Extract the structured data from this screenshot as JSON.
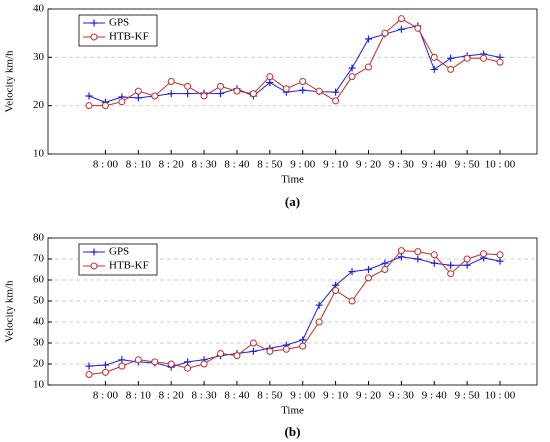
{
  "chart_data": [
    {
      "type": "line",
      "caption": "(a)",
      "xlabel": "Time",
      "ylabel": "Velocity km/h",
      "categories": [
        null,
        "8 : 00",
        null,
        "8 : 10",
        null,
        "8 : 20",
        null,
        "8 : 30",
        null,
        "8 : 40",
        null,
        "8 : 50",
        null,
        "9 : 00",
        null,
        "9 : 10",
        null,
        "9 : 20",
        null,
        "9 : 30",
        null,
        "9 : 40",
        null,
        "9 : 50",
        null,
        "10 : 00"
      ],
      "ylim": [
        10,
        40
      ],
      "yticks": [
        10,
        20,
        30,
        40
      ],
      "grid": true,
      "legend": "upper-left",
      "series": [
        {
          "name": "GPS",
          "color": "#1f1fe0",
          "marker": "plus",
          "values": [
            22,
            20.7,
            21.8,
            21.6,
            22,
            22.5,
            22.5,
            22.6,
            22.5,
            23.5,
            22,
            24.8,
            22.8,
            23.2,
            22.9,
            22.8,
            27.8,
            33.8,
            34.8,
            35.8,
            36.5,
            27.5,
            29.8,
            30.3,
            30.7,
            30
          ]
        },
        {
          "name": "HTB-KF",
          "color": "#c0302a",
          "marker": "circle",
          "values": [
            20,
            20,
            20.8,
            23,
            22,
            25,
            24,
            22,
            24,
            23,
            22.5,
            26,
            23.5,
            25,
            23,
            21,
            26,
            28,
            35,
            38,
            36,
            30,
            27.5,
            29.8,
            29.8,
            29
          ]
        }
      ]
    },
    {
      "type": "line",
      "caption": "(b)",
      "xlabel": "Time",
      "ylabel": "Velocity km/h",
      "categories": [
        null,
        "8 : 00",
        null,
        "8 : 10",
        null,
        "8 : 20",
        null,
        "8 : 30",
        null,
        "8 : 40",
        null,
        "8 : 50",
        null,
        "9 : 00",
        null,
        "9 : 10",
        null,
        "9 : 20",
        null,
        "9 : 30",
        null,
        "9 : 40",
        null,
        "9 : 50",
        null,
        "10 : 00"
      ],
      "ylim": [
        10,
        80
      ],
      "yticks": [
        10,
        20,
        30,
        40,
        50,
        60,
        70,
        80
      ],
      "grid": true,
      "legend": "upper-left",
      "series": [
        {
          "name": "GPS",
          "color": "#1f1fe0",
          "marker": "plus",
          "values": [
            19,
            19.5,
            22,
            21,
            20.5,
            18.5,
            21,
            22,
            24,
            25,
            26,
            27.5,
            29,
            31.5,
            48,
            57.5,
            64,
            65,
            68,
            71,
            70,
            68,
            67,
            67,
            70.5,
            69
          ]
        },
        {
          "name": "HTB-KF",
          "color": "#c0302a",
          "marker": "circle",
          "values": [
            15,
            16,
            19,
            22,
            21,
            20,
            18,
            20,
            25,
            24,
            30,
            26,
            27,
            28.5,
            40,
            55,
            50,
            61,
            65,
            74,
            73.5,
            72,
            63,
            70,
            72.5,
            72
          ]
        }
      ]
    }
  ]
}
